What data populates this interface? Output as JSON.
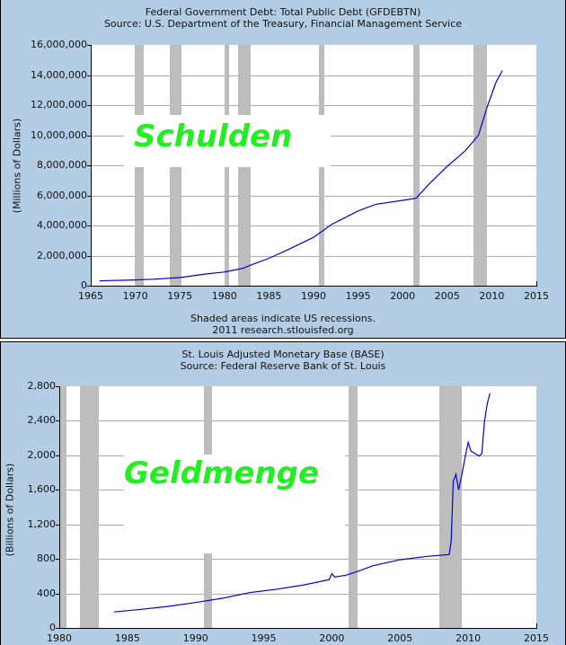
{
  "chart_data": [
    {
      "type": "line",
      "title": "Federal Government Debt: Total Public Debt (GFDEBTN)",
      "subtitle": "Source: U.S. Department of the Treasury, Financial Management Service",
      "xlabel": "",
      "ylabel": "(Millions of Dollars)",
      "xlim": [
        1965,
        2015
      ],
      "ylim": [
        0,
        16000000
      ],
      "x_ticks": [
        "1965",
        "1970",
        "1975",
        "1980",
        "1985",
        "1990",
        "1995",
        "2000",
        "2005",
        "2010",
        "2015"
      ],
      "y_ticks": [
        "0",
        "2,000,000",
        "4,000,000",
        "6,000,000",
        "8,000,000",
        "10,000,000",
        "12,000,000",
        "14,000,000",
        "16,000,000"
      ],
      "grid": true,
      "annotation": "Schulden",
      "footnote": "Shaded areas indicate US recessions.",
      "credit": "2011 research.stlouisfed.org",
      "recessions": [
        [
          1969.9,
          1970.9
        ],
        [
          1973.9,
          1975.2
        ],
        [
          1980.0,
          1980.5
        ],
        [
          1981.5,
          1982.9
        ],
        [
          1990.6,
          1991.2
        ],
        [
          2001.2,
          2001.9
        ],
        [
          2007.9,
          2009.5
        ]
      ],
      "series": [
        {
          "name": "GFDEBTN",
          "x": [
            1966,
            1967,
            1968,
            1970,
            1972,
            1975,
            1978,
            1980,
            1982,
            1983,
            1985,
            1987,
            1990,
            1992,
            1995,
            1997,
            2000,
            2001.5,
            2003,
            2005,
            2007,
            2008.5,
            2009.5,
            2010.5,
            2011.2
          ],
          "values": [
            320000,
            340000,
            350000,
            380000,
            430000,
            540000,
            780000,
            910000,
            1140000,
            1380000,
            1820000,
            2350000,
            3210000,
            4060000,
            4970000,
            5410000,
            5670000,
            5810000,
            6780000,
            7930000,
            8950000,
            9990000,
            11910000,
            13560000,
            14300000
          ]
        }
      ]
    },
    {
      "type": "line",
      "title": "St. Louis Adjusted Monetary Base (BASE)",
      "subtitle": "Source: Federal Reserve Bank of St. Louis",
      "xlabel": "",
      "ylabel": "(Billions of Dollars)",
      "xlim": [
        1980,
        2015
      ],
      "ylim": [
        0,
        2800
      ],
      "x_ticks": [
        "1980",
        "1985",
        "1990",
        "1995",
        "2000",
        "2005",
        "2010",
        "2015"
      ],
      "y_ticks": [
        "0",
        "400",
        "800",
        "1,200",
        "1,600",
        "2,000",
        "2,400",
        "2,800"
      ],
      "grid": true,
      "annotation": "Geldmenge",
      "recessions": [
        [
          1980.0,
          1980.5
        ],
        [
          1981.5,
          1982.9
        ],
        [
          1990.6,
          1991.2
        ],
        [
          2001.2,
          2001.9
        ],
        [
          2007.9,
          2009.5
        ]
      ],
      "series": [
        {
          "name": "BASE",
          "x": [
            1984,
            1986,
            1988,
            1990,
            1992,
            1994,
            1996,
            1998,
            1999.8,
            2000.0,
            2000.2,
            2001,
            2001.8,
            2003,
            2005,
            2007,
            2008.6,
            2008.75,
            2008.9,
            2009.1,
            2009.3,
            2009.5,
            2009.8,
            2010.0,
            2010.2,
            2010.5,
            2010.8,
            2011.0,
            2011.2,
            2011.4,
            2011.6
          ],
          "values": [
            185,
            215,
            250,
            295,
            345,
            410,
            450,
            500,
            560,
            630,
            590,
            610,
            650,
            720,
            790,
            830,
            850,
            1000,
            1700,
            1780,
            1600,
            1750,
            2000,
            2150,
            2050,
            2020,
            1990,
            2020,
            2400,
            2600,
            2720
          ]
        }
      ]
    }
  ]
}
